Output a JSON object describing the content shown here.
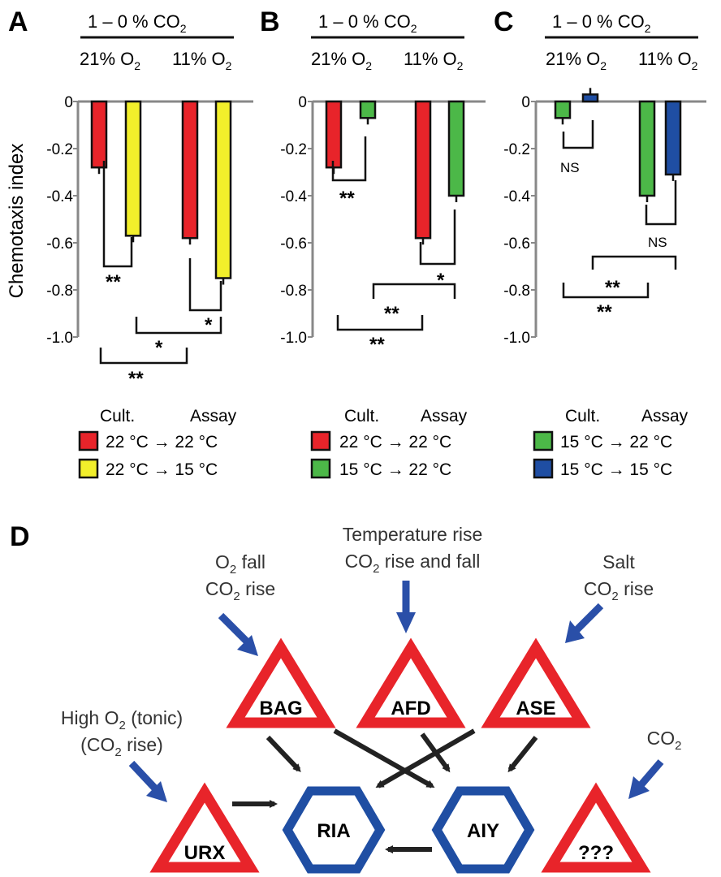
{
  "chart_data": [
    {
      "panel": "A",
      "type": "bar",
      "header_top": "1 –  0 % CO",
      "header_groups": [
        "21% O",
        "11% O"
      ],
      "ylabel": "Chemotaxis index",
      "yticks": [
        "0",
        "-0.2",
        "-0.4",
        "-0.6",
        "-0.8",
        "-1.0"
      ],
      "ylim": [
        -1.0,
        0
      ],
      "series": [
        {
          "name": "22 °C → 22 °C",
          "color": "#e8242a",
          "values": [
            -0.28,
            -0.58
          ]
        },
        {
          "name": "22 °C → 15 °C",
          "color": "#f2ef2b",
          "values": [
            -0.57,
            -0.75
          ]
        }
      ],
      "legend_header": [
        "Cult.",
        "Assay"
      ],
      "legend": [
        {
          "color": "#e8242a",
          "text": "22 °C → 22 °C"
        },
        {
          "color": "#f2ef2b",
          "text": "22 °C → 15 °C"
        }
      ],
      "significance": [
        "**",
        "*",
        "*",
        "**"
      ]
    },
    {
      "panel": "B",
      "type": "bar",
      "header_top": "1 –  0 % CO",
      "header_groups": [
        "21% O",
        "11% O"
      ],
      "yticks": [
        "0",
        "-0.2",
        "-0.4",
        "-0.6",
        "-0.8",
        "-1.0"
      ],
      "ylim": [
        -1.0,
        0
      ],
      "series": [
        {
          "name": "22 °C → 22 °C",
          "color": "#e8242a",
          "values": [
            -0.28,
            -0.58
          ]
        },
        {
          "name": "15 °C → 22 °C",
          "color": "#4cb848",
          "values": [
            -0.07,
            -0.4
          ]
        }
      ],
      "legend_header": [
        "Cult.",
        "Assay"
      ],
      "legend": [
        {
          "color": "#e8242a",
          "text": "22 °C → 22 °C"
        },
        {
          "color": "#4cb848",
          "text": "15 °C → 22 °C"
        }
      ],
      "significance": [
        "**",
        "*",
        "**",
        "**"
      ]
    },
    {
      "panel": "C",
      "type": "bar",
      "header_top": "1 –  0 % CO",
      "header_groups": [
        "21% O",
        "11% O"
      ],
      "yticks": [
        "0",
        "-0.2",
        "-0.4",
        "-0.6",
        "-0.8",
        "-1.0"
      ],
      "ylim": [
        -1.0,
        0
      ],
      "series": [
        {
          "name": "15 °C → 22 °C",
          "color": "#4cb848",
          "values": [
            -0.07,
            -0.4
          ]
        },
        {
          "name": "15 °C → 15 °C",
          "color": "#1f4ea3",
          "values": [
            0.03,
            -0.31
          ]
        }
      ],
      "legend_header": [
        "Cult.",
        "Assay"
      ],
      "legend": [
        {
          "color": "#4cb848",
          "text": "15 °C → 22 °C"
        },
        {
          "color": "#1f4ea3",
          "text": "15 °C → 15 °C"
        }
      ],
      "significance": [
        "NS",
        "NS",
        "**",
        "**"
      ]
    }
  ],
  "diagram": {
    "panel": "D",
    "colors": {
      "sensory": "#e8242a",
      "interneuron": "#1f4ea3",
      "arrow_input": "#2a4fa8",
      "arrow": "#222222"
    },
    "nodes": {
      "bag": "BAG",
      "afd": "AFD",
      "ase": "ASE",
      "urx": "URX",
      "ria": "RIA",
      "aiy": "AIY",
      "unknown": "???"
    },
    "stimuli": {
      "bag_1": "O",
      "bag_1b": " fall",
      "bag_2": "CO",
      "bag_2b": " rise",
      "afd_1": "Temperature rise",
      "afd_2": "CO",
      "afd_2b": " rise and fall",
      "ase_1": "Salt",
      "ase_2": "CO",
      "ase_2b": " rise",
      "urx_1": "High O",
      "urx_1b": " (tonic)",
      "urx_2": "(CO",
      "urx_2b": " rise)",
      "unk_1": "CO"
    }
  }
}
